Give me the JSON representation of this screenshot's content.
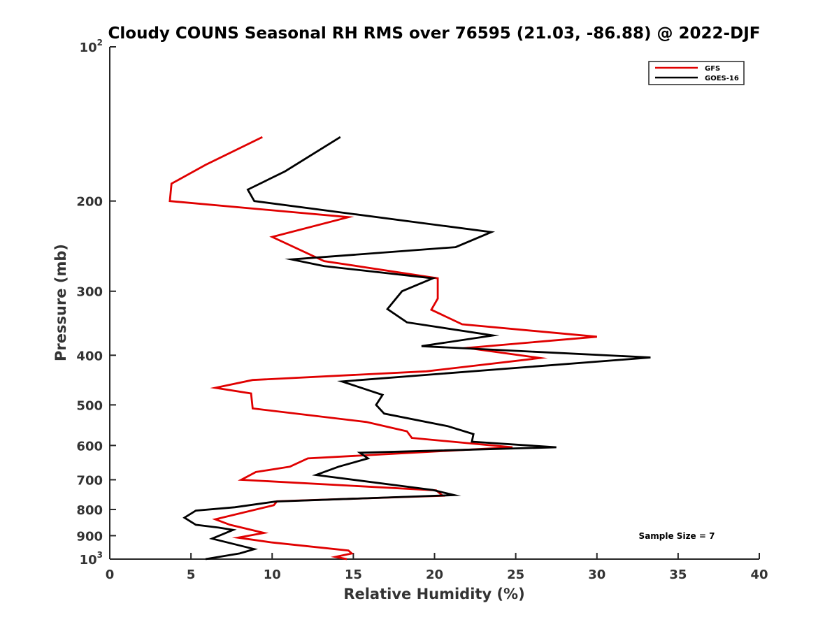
{
  "chart_data": {
    "type": "line",
    "title": "Cloudy COUNS Seasonal RH RMS over 76595 (21.03, -86.88) @ 2022-DJF",
    "xlabel": "Relative Humidity (%)",
    "ylabel": "Pressure (mb)",
    "xlim": [
      0,
      40
    ],
    "ylim": [
      100,
      1000
    ],
    "yscale": "log",
    "y_reversed": true,
    "x_ticks": [
      0,
      5,
      10,
      15,
      20,
      25,
      30,
      35,
      40
    ],
    "x_tick_labels": [
      "0",
      "5",
      "10",
      "15",
      "20",
      "25",
      "30",
      "35",
      "40"
    ],
    "y_ticks": [
      100,
      200,
      300,
      400,
      500,
      600,
      700,
      800,
      900,
      1000
    ],
    "y_tick_labels": [
      {
        "base": "10",
        "exp": "2"
      },
      {
        "base": "200"
      },
      {
        "base": "300"
      },
      {
        "base": "400"
      },
      {
        "base": "500"
      },
      {
        "base": "600"
      },
      {
        "base": "700"
      },
      {
        "base": "800"
      },
      {
        "base": "900"
      },
      {
        "base": "10",
        "exp": "3"
      }
    ],
    "legend_position": "top-right",
    "annotation": "Sample Size = 7",
    "series": [
      {
        "name": "GFS",
        "color": "#e00000",
        "points": [
          [
            9.4,
            150
          ],
          [
            5.9,
            170
          ],
          [
            3.8,
            185
          ],
          [
            3.7,
            200
          ],
          [
            14.7,
            215
          ],
          [
            10.0,
            235
          ],
          [
            13.2,
            262
          ],
          [
            20.2,
            283
          ],
          [
            20.2,
            310
          ],
          [
            19.8,
            326
          ],
          [
            21.7,
            348
          ],
          [
            30.0,
            368
          ],
          [
            22.0,
            387
          ],
          [
            26.5,
            405
          ],
          [
            19.5,
            430
          ],
          [
            8.8,
            447
          ],
          [
            6.5,
            463
          ],
          [
            8.7,
            475
          ],
          [
            8.8,
            508
          ],
          [
            15.8,
            540
          ],
          [
            18.3,
            563
          ],
          [
            18.6,
            580
          ],
          [
            24.8,
            605
          ],
          [
            12.2,
            636
          ],
          [
            11.1,
            660
          ],
          [
            9.0,
            676
          ],
          [
            8.1,
            700
          ],
          [
            20.1,
            734
          ],
          [
            20.5,
            752
          ],
          [
            10.3,
            771
          ],
          [
            10.1,
            785
          ],
          [
            6.5,
            836
          ],
          [
            7.4,
            857
          ],
          [
            9.5,
            889
          ],
          [
            7.9,
            908
          ],
          [
            10.0,
            928
          ],
          [
            14.7,
            962
          ],
          [
            14.9,
            975
          ],
          [
            13.9,
            990
          ],
          [
            14.6,
            1000
          ]
        ]
      },
      {
        "name": "GOES-16",
        "color": "#000000",
        "points": [
          [
            14.2,
            150
          ],
          [
            10.8,
            175
          ],
          [
            8.5,
            190
          ],
          [
            8.9,
            200
          ],
          [
            23.5,
            230
          ],
          [
            21.3,
            246
          ],
          [
            11.2,
            260
          ],
          [
            13.2,
            268
          ],
          [
            19.9,
            283
          ],
          [
            18.0,
            300
          ],
          [
            17.1,
            325
          ],
          [
            18.3,
            345
          ],
          [
            23.6,
            366
          ],
          [
            19.2,
            384
          ],
          [
            33.3,
            404
          ],
          [
            14.3,
            450
          ],
          [
            16.8,
            478
          ],
          [
            16.4,
            500
          ],
          [
            16.9,
            520
          ],
          [
            20.8,
            550
          ],
          [
            22.4,
            570
          ],
          [
            22.3,
            590
          ],
          [
            27.5,
            605
          ],
          [
            15.4,
            620
          ],
          [
            15.9,
            636
          ],
          [
            14.1,
            660
          ],
          [
            12.7,
            685
          ],
          [
            19.9,
            733
          ],
          [
            21.2,
            750
          ],
          [
            10.2,
            772
          ],
          [
            7.7,
            792
          ],
          [
            5.3,
            804
          ],
          [
            4.6,
            830
          ],
          [
            5.3,
            857
          ],
          [
            6.7,
            868
          ],
          [
            7.6,
            877
          ],
          [
            6.3,
            912
          ],
          [
            8.9,
            956
          ],
          [
            8.0,
            975
          ],
          [
            5.9,
            1000
          ]
        ]
      }
    ]
  }
}
